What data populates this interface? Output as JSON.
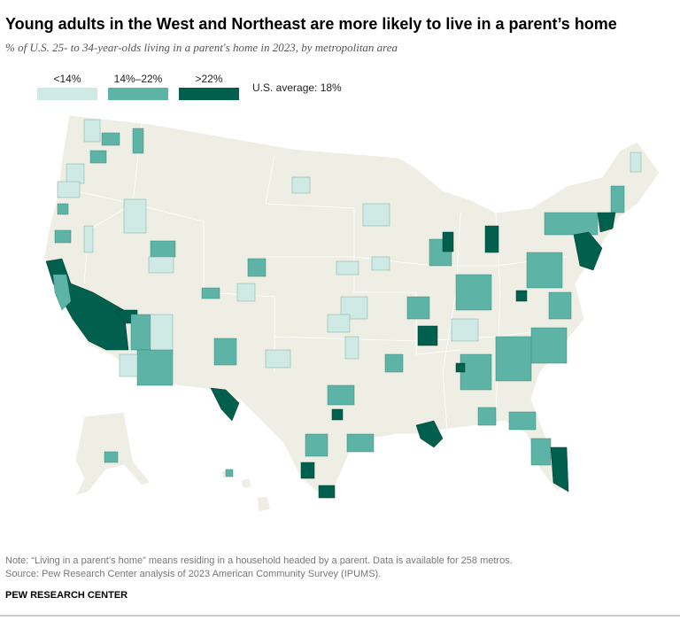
{
  "header": {
    "title": "Young adults in the West and Northeast are more likely to live in a parent’s home",
    "subtitle": "% of U.S. 25- to 34-year-olds living in a parent's home in 2023, by metropolitan area"
  },
  "legend": {
    "items": [
      {
        "label": "<14%",
        "color": "#cfe9e4"
      },
      {
        "label": "14%–22%",
        "color": "#5db3a5"
      },
      {
        "label": ">22%",
        "color": "#015f4d"
      }
    ],
    "average": "U.S. average: 18%"
  },
  "notes": {
    "note": "Note: “Living in a parent’s home” means residing in a household headed by a parent. Data is available for 258 metros.",
    "source": "Source: Pew Research Center analysis of 2023 American Community Survey (IPUMS)."
  },
  "footer": "PEW RESEARCH CENTER"
}
